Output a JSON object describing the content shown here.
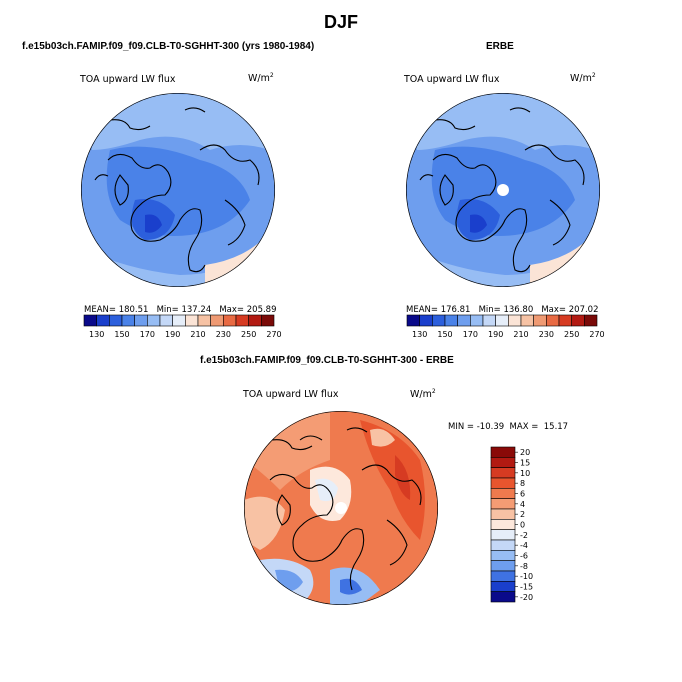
{
  "page": {
    "title": "DJF"
  },
  "panels": [
    {
      "case_title": "f.e15b03ch.FAMIP.f09_f09.CLB-T0-SGHHT-300 (yrs 1980-1984)",
      "variable": "TOA upward LW flux",
      "units": "W/m",
      "units_sup": "2",
      "stats": {
        "mean_label": "MEAN=",
        "mean": "180.51",
        "min_label": "Min=",
        "min": "137.24",
        "max_label": "Max=",
        "max": "205.89"
      }
    },
    {
      "case_title": "ERBE",
      "variable": "TOA upward LW flux",
      "units": "W/m",
      "units_sup": "2",
      "stats": {
        "mean_label": "MEAN=",
        "mean": "176.81",
        "min_label": "Min=",
        "min": "136.80",
        "max_label": "Max=",
        "max": "207.02"
      }
    },
    {
      "case_title": "f.e15b03ch.FAMIP.f09_f09.CLB-T0-SGHHT-300 - ERBE",
      "variable": "TOA upward LW flux",
      "units": "W/m",
      "units_sup": "2",
      "stats": {
        "min_label": "MIN =",
        "min": "-10.39",
        "max_label": "MAX =",
        "max": "15.17"
      }
    }
  ],
  "chart_data": [
    {
      "type": "heatmap",
      "projection": "north polar stereographic",
      "title": "f.e15b03ch.FAMIP.f09_f09.CLB-T0-SGHHT-300 (yrs 1980-1984)",
      "variable": "TOA upward LW flux",
      "units": "W/m2",
      "colorbar": {
        "orientation": "horizontal",
        "ticks": [
          "130",
          "150",
          "170",
          "190",
          "210",
          "230",
          "250",
          "270"
        ],
        "colors": [
          "#0a0a8a",
          "#1a3fcc",
          "#2c5fdc",
          "#4a82e8",
          "#6e9eee",
          "#97bdf4",
          "#c4d8f7",
          "#e6eef9",
          "#fbe4d6",
          "#f6c2a4",
          "#ef9a73",
          "#e86a43",
          "#d63b22",
          "#b21a12",
          "#7a0a08"
        ]
      },
      "mean": 180.51,
      "min": 137.24,
      "max": 205.89
    },
    {
      "type": "heatmap",
      "projection": "north polar stereographic",
      "title": "ERBE",
      "variable": "TOA upward LW flux",
      "units": "W/m2",
      "colorbar": {
        "orientation": "horizontal",
        "ticks": [
          "130",
          "150",
          "170",
          "190",
          "210",
          "230",
          "250",
          "270"
        ],
        "colors": [
          "#0a0a8a",
          "#1a3fcc",
          "#2c5fdc",
          "#4a82e8",
          "#6e9eee",
          "#97bdf4",
          "#c4d8f7",
          "#e6eef9",
          "#fbe4d6",
          "#f6c2a4",
          "#ef9a73",
          "#e86a43",
          "#d63b22",
          "#b21a12",
          "#7a0a08"
        ]
      },
      "mean": 176.81,
      "min": 136.8,
      "max": 207.02
    },
    {
      "type": "heatmap",
      "projection": "north polar stereographic",
      "title": "f.e15b03ch.FAMIP.f09_f09.CLB-T0-SGHHT-300 - ERBE",
      "variable": "TOA upward LW flux",
      "units": "W/m2",
      "colorbar": {
        "orientation": "vertical",
        "ticks": [
          "20",
          "15",
          "10",
          "8",
          "6",
          "4",
          "2",
          "0",
          "-2",
          "-4",
          "-6",
          "-8",
          "-10",
          "-15",
          "-20"
        ],
        "colors": [
          "#8a0a08",
          "#b21a12",
          "#d63b22",
          "#e8552e",
          "#ef7a4e",
          "#f49c74",
          "#f8c2a4",
          "#fde8dc",
          "#e6eef9",
          "#c4d8f7",
          "#97bdf4",
          "#6e9eee",
          "#3f72e2",
          "#1a3fcc",
          "#0a0a8a"
        ]
      },
      "min": -10.39,
      "max": 15.17
    }
  ]
}
